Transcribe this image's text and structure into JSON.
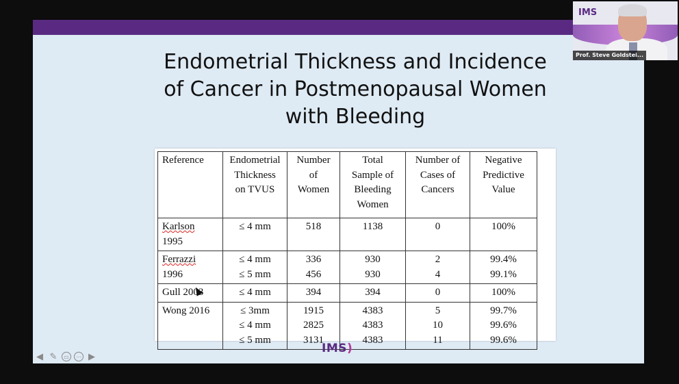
{
  "slide": {
    "title_lines": [
      "Endometrial Thickness and Incidence",
      "of Cancer in Postmenopausal Women",
      "with Bleeding"
    ],
    "footer_logo": "IMS"
  },
  "table": {
    "headers": {
      "reference": "Reference",
      "thickness": [
        "Endometrial",
        "Thickness",
        "on TVUS"
      ],
      "women": [
        "Number of",
        "Women"
      ],
      "sample": [
        "Total",
        "Sample of",
        "Bleeding",
        "Women"
      ],
      "cases": [
        "Number of",
        "Cases of",
        "Cancers"
      ],
      "npv": [
        "Negative",
        "Predictive",
        "Value"
      ]
    },
    "rows": {
      "karlson": {
        "ref": [
          "Karlson",
          "1995"
        ],
        "thickness": [
          "≤ 4 mm"
        ],
        "women": [
          "518"
        ],
        "sample": [
          "1138"
        ],
        "cases": [
          "0"
        ],
        "npv": [
          "100%"
        ]
      },
      "ferrazzi": {
        "ref": [
          "Ferrazzi",
          "1996"
        ],
        "thickness": [
          "≤ 4 mm",
          "≤ 5 mm"
        ],
        "women": [
          "336",
          "456"
        ],
        "sample": [
          "930",
          "930"
        ],
        "cases": [
          "2",
          "4"
        ],
        "npv": [
          "99.4%",
          "99.1%"
        ]
      },
      "gull": {
        "ref": [
          "Gull 2003"
        ],
        "thickness": [
          "≤ 4 mm"
        ],
        "women": [
          "394"
        ],
        "sample": [
          "394"
        ],
        "cases": [
          "0"
        ],
        "npv": [
          "100%"
        ]
      },
      "wong": {
        "ref": [
          "Wong 2016"
        ],
        "thickness": [
          "≤ 3mm",
          "≤ 4 mm",
          "≤ 5 mm"
        ],
        "women": [
          "1915",
          "2825",
          "3131"
        ],
        "sample": [
          "4383",
          "4383",
          "4383"
        ],
        "cases": [
          "5",
          "10",
          "11"
        ],
        "npv": [
          "99.7%",
          "99.6%",
          "99.6%"
        ]
      }
    }
  },
  "webcam": {
    "logo": "IMS",
    "speaker_name": "Prof. Steve Goldstei..."
  },
  "nav": {
    "icons": [
      "arrow-left-icon",
      "pen-icon",
      "subtitle-icon",
      "more-icon",
      "arrow-right-icon"
    ]
  },
  "colors": {
    "brand_purple": "#5a2a82",
    "slide_background": "#deeaf4"
  }
}
